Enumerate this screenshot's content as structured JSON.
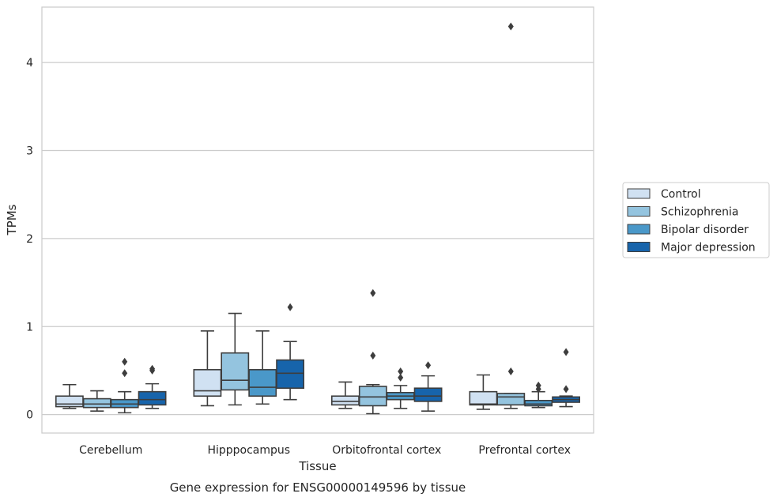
{
  "chart_data": {
    "type": "box",
    "title": "",
    "caption": "Gene expression for ENSG00000149596 by tissue",
    "xlabel": "Tissue",
    "ylabel": "TPMs",
    "ylim": [
      -0.21,
      4.63
    ],
    "yticks": [
      0,
      1,
      2,
      3,
      4
    ],
    "grid": "horizontal",
    "legend_position": "right",
    "categories": [
      "Cerebellum",
      "Hipppocampus",
      "Orbitofrontal cortex",
      "Prefrontal cortex"
    ],
    "series": [
      {
        "name": "Control",
        "color": "#d0e1f2",
        "boxes": [
          {
            "whislo": 0.07,
            "q1": 0.09,
            "med": 0.12,
            "q3": 0.21,
            "whishi": 0.34,
            "fliers": []
          },
          {
            "whislo": 0.1,
            "q1": 0.21,
            "med": 0.27,
            "q3": 0.51,
            "whishi": 0.95,
            "fliers": []
          },
          {
            "whislo": 0.07,
            "q1": 0.11,
            "med": 0.15,
            "q3": 0.21,
            "whishi": 0.37,
            "fliers": []
          },
          {
            "whislo": 0.06,
            "q1": 0.11,
            "med": 0.12,
            "q3": 0.26,
            "whishi": 0.45,
            "fliers": []
          }
        ]
      },
      {
        "name": "Schizophrenia",
        "color": "#94c4df",
        "boxes": [
          {
            "whislo": 0.04,
            "q1": 0.08,
            "med": 0.12,
            "q3": 0.18,
            "whishi": 0.27,
            "fliers": []
          },
          {
            "whislo": 0.11,
            "q1": 0.28,
            "med": 0.39,
            "q3": 0.7,
            "whishi": 1.15,
            "fliers": []
          },
          {
            "whislo": 0.01,
            "q1": 0.1,
            "med": 0.2,
            "q3": 0.32,
            "whishi": 0.34,
            "fliers": [
              0.67,
              1.38
            ]
          },
          {
            "whislo": 0.07,
            "q1": 0.11,
            "med": 0.2,
            "q3": 0.24,
            "whishi": 0.24,
            "fliers": [
              0.49,
              4.41
            ]
          }
        ]
      },
      {
        "name": "Bipolar disorder",
        "color": "#4a98c9",
        "boxes": [
          {
            "whislo": 0.02,
            "q1": 0.08,
            "med": 0.12,
            "q3": 0.17,
            "whishi": 0.26,
            "fliers": [
              0.47,
              0.6
            ]
          },
          {
            "whislo": 0.12,
            "q1": 0.21,
            "med": 0.31,
            "q3": 0.51,
            "whishi": 0.95,
            "fliers": []
          },
          {
            "whislo": 0.07,
            "q1": 0.17,
            "med": 0.21,
            "q3": 0.25,
            "whishi": 0.33,
            "fliers": [
              0.42,
              0.49
            ]
          },
          {
            "whislo": 0.08,
            "q1": 0.1,
            "med": 0.12,
            "q3": 0.16,
            "whishi": 0.26,
            "fliers": [
              0.29,
              0.33
            ]
          }
        ]
      },
      {
        "name": "Major depression",
        "color": "#1764ab",
        "boxes": [
          {
            "whislo": 0.07,
            "q1": 0.11,
            "med": 0.17,
            "q3": 0.26,
            "whishi": 0.35,
            "fliers": [
              0.5,
              0.52
            ]
          },
          {
            "whislo": 0.17,
            "q1": 0.3,
            "med": 0.47,
            "q3": 0.62,
            "whishi": 0.83,
            "fliers": [
              1.22
            ]
          },
          {
            "whislo": 0.04,
            "q1": 0.15,
            "med": 0.21,
            "q3": 0.3,
            "whishi": 0.44,
            "fliers": [
              0.56
            ]
          },
          {
            "whislo": 0.09,
            "q1": 0.14,
            "med": 0.17,
            "q3": 0.2,
            "whishi": 0.21,
            "fliers": [
              0.29,
              0.71
            ]
          }
        ]
      }
    ]
  }
}
